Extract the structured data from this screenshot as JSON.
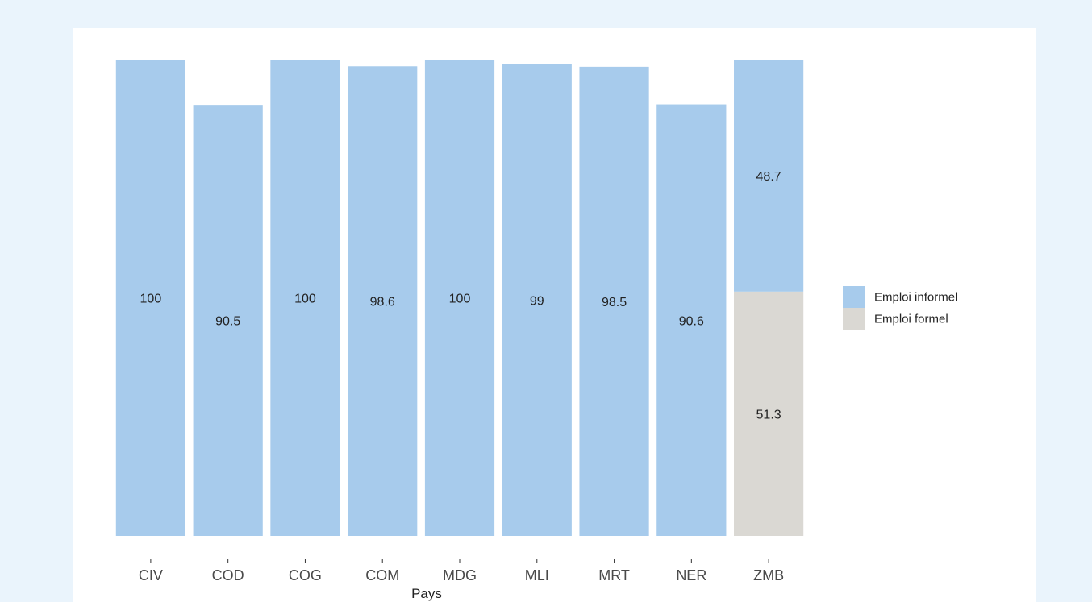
{
  "chart_data": {
    "type": "bar",
    "stacked": true,
    "categories": [
      "CIV",
      "COD",
      "COG",
      "COM",
      "MDG",
      "MLI",
      "MRT",
      "NER",
      "ZMB"
    ],
    "series": [
      {
        "name": "Emploi formel",
        "color": "#dad8d3",
        "values": [
          0,
          0,
          0,
          0,
          0,
          0,
          0,
          0,
          51.3
        ],
        "labels": [
          "",
          "",
          "",
          "",
          "",
          "",
          "",
          "",
          "51.3"
        ]
      },
      {
        "name": "Emploi informel",
        "color": "#a7cbec",
        "values": [
          100,
          90.5,
          100,
          98.6,
          100,
          99,
          98.5,
          90.6,
          48.7
        ],
        "labels": [
          "100",
          "90.5",
          "100",
          "98.6",
          "100",
          "99",
          "98.5",
          "90.6",
          "48.7"
        ]
      }
    ],
    "xlabel": "Pays",
    "ylabel": "",
    "ylim": [
      0,
      100
    ],
    "grid": false,
    "legend": {
      "position": "right",
      "entries": [
        {
          "label": "Emploi informel",
          "color": "#a7cbec"
        },
        {
          "label": "Emploi formel",
          "color": "#dad8d3"
        }
      ]
    }
  }
}
